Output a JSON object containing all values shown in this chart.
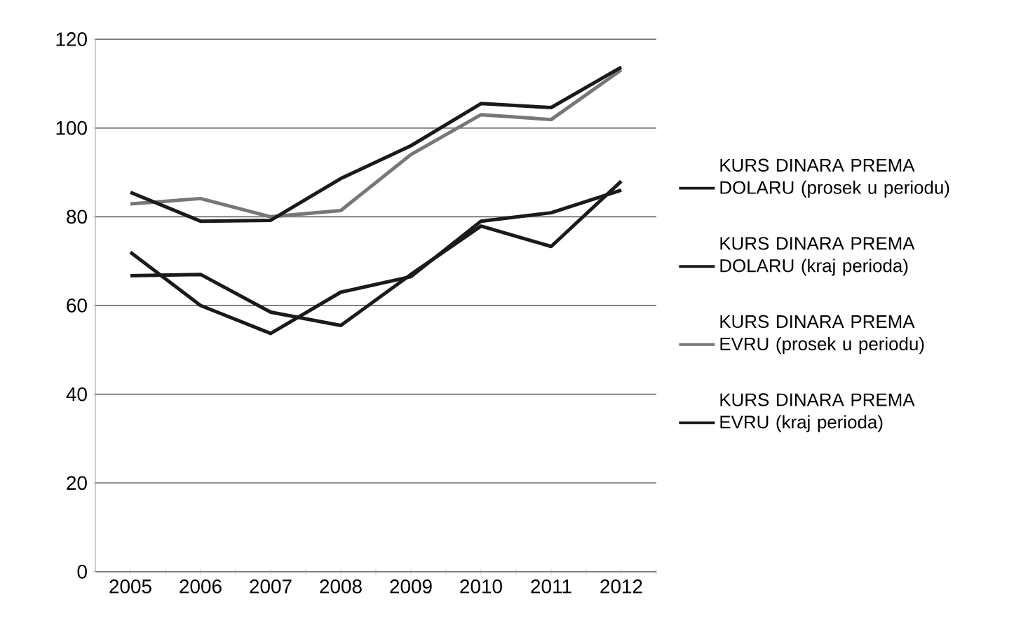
{
  "chart_data": {
    "type": "line",
    "categories": [
      "2005",
      "2006",
      "2007",
      "2008",
      "2009",
      "2010",
      "2011",
      "2012"
    ],
    "series": [
      {
        "name": "KURS DINARA PREMA DOLARU (prosek u periodu)",
        "color": "#1a1a1a",
        "values": [
          66.7,
          67,
          58.5,
          55.5,
          67,
          77.9,
          73.3,
          88
        ]
      },
      {
        "name": "KURS DINARA PREMA DOLARU (kraj perioda)",
        "color": "#1a1a1a",
        "values": [
          72,
          60,
          53.7,
          63,
          66.5,
          79,
          80.9,
          86
        ]
      },
      {
        "name": "KURS DINARA PREMA EVRU (prosek u periodu)",
        "color": "#777777",
        "values": [
          82.9,
          84.1,
          80,
          81.4,
          94,
          103,
          101.9,
          113.1
        ]
      },
      {
        "name": "KURS DINARA PREMA EVRU (kraj perioda)",
        "color": "#1a1a1a",
        "values": [
          85.5,
          79,
          79.2,
          88.6,
          96,
          105.5,
          104.6,
          113.7
        ]
      }
    ],
    "ylim": [
      0,
      120
    ],
    "yticks": [
      0,
      20,
      40,
      60,
      80,
      100,
      120
    ],
    "grid": "y",
    "legend": "right",
    "marker": "none",
    "line_style": "solid"
  }
}
